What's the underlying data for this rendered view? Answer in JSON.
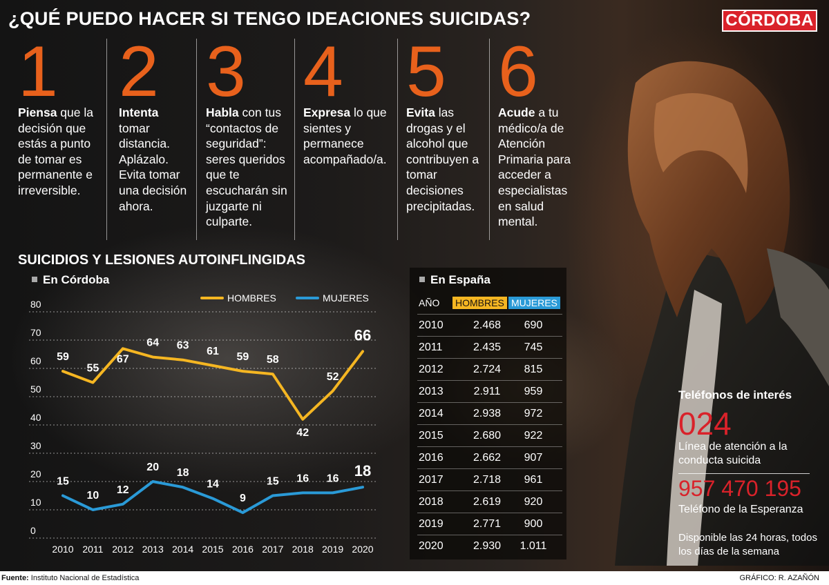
{
  "title": "¿QUÉ PUEDO HACER SI TENGO IDEACIONES SUICIDAS?",
  "logo": "CÓRDOBA",
  "steps": [
    {
      "num": "1",
      "bold": "Piensa",
      "text": " que la decisión que estás a punto de tomar es permanente e irreversible."
    },
    {
      "num": "2",
      "bold": "Intenta",
      "text": " tomar distancia. Aplázalo. Evita tomar una decisión ahora."
    },
    {
      "num": "3",
      "bold": "Habla",
      "text": " con tus “contactos de seguridad”: seres queridos que te escucharán sin juzgarte ni culparte."
    },
    {
      "num": "4",
      "bold": "Expresa",
      "text": " lo que sientes y permanece acompañado/a."
    },
    {
      "num": "5",
      "bold": "Evita",
      "text": " las drogas y el alcohol que contribuyen a tomar decisiones precipitadas."
    },
    {
      "num": "6",
      "bold": "Acude",
      "text": " a tu médico/a de Atención Primaria para acceder a especialistas en salud mental."
    }
  ],
  "section_title": "SUICIDIOS Y LESIONES AUTOINFLINGIDAS",
  "chart_data": {
    "type": "line",
    "subtitle": "En Córdoba",
    "categories": [
      "2010",
      "2011",
      "2012",
      "2013",
      "2014",
      "2015",
      "2016",
      "2017",
      "2018",
      "2019",
      "2020"
    ],
    "series": [
      {
        "name": "HOMBRES",
        "color": "#f5b622",
        "values": [
          59,
          55,
          67,
          64,
          63,
          61,
          59,
          58,
          42,
          52,
          66
        ]
      },
      {
        "name": "MUJERES",
        "color": "#2a9ad7",
        "values": [
          15,
          10,
          12,
          20,
          18,
          14,
          9,
          15,
          16,
          16,
          18
        ]
      }
    ],
    "ylim": [
      0,
      80
    ],
    "yticks": [
      0,
      10,
      20,
      30,
      40,
      50,
      60,
      70,
      80
    ],
    "grid": true,
    "legend": "top-right"
  },
  "spain": {
    "title": "En España",
    "header": {
      "year": "AÑO",
      "men": "HOMBRES",
      "women": "MUJERES"
    },
    "rows": [
      {
        "year": "2010",
        "men": "2.468",
        "women": "690"
      },
      {
        "year": "2011",
        "men": "2.435",
        "women": "745"
      },
      {
        "year": "2012",
        "men": "2.724",
        "women": "815"
      },
      {
        "year": "2013",
        "men": "2.911",
        "women": "959"
      },
      {
        "year": "2014",
        "men": "2.938",
        "women": "972"
      },
      {
        "year": "2015",
        "men": "2.680",
        "women": "922"
      },
      {
        "year": "2016",
        "men": "2.662",
        "women": "907"
      },
      {
        "year": "2017",
        "men": "2.718",
        "women": "961"
      },
      {
        "year": "2018",
        "men": "2.619",
        "women": "920"
      },
      {
        "year": "2019",
        "men": "2.771",
        "women": "900"
      },
      {
        "year": "2020",
        "men": "2.930",
        "women": "1.011"
      }
    ]
  },
  "phones": {
    "title": "Teléfonos de interés",
    "num1": "024",
    "desc1": "Línea de atención a la conducta suicida",
    "num2": "957 470 195",
    "desc2": "Teléfono de la Esperanza",
    "desc3": "Disponible las 24 horas, todos los días de la semana"
  },
  "footer": {
    "source_label": "Fuente:",
    "source": " Instituto Nacional de Estadística",
    "credit": "GRÁFICO: R. AZAÑÓN"
  }
}
